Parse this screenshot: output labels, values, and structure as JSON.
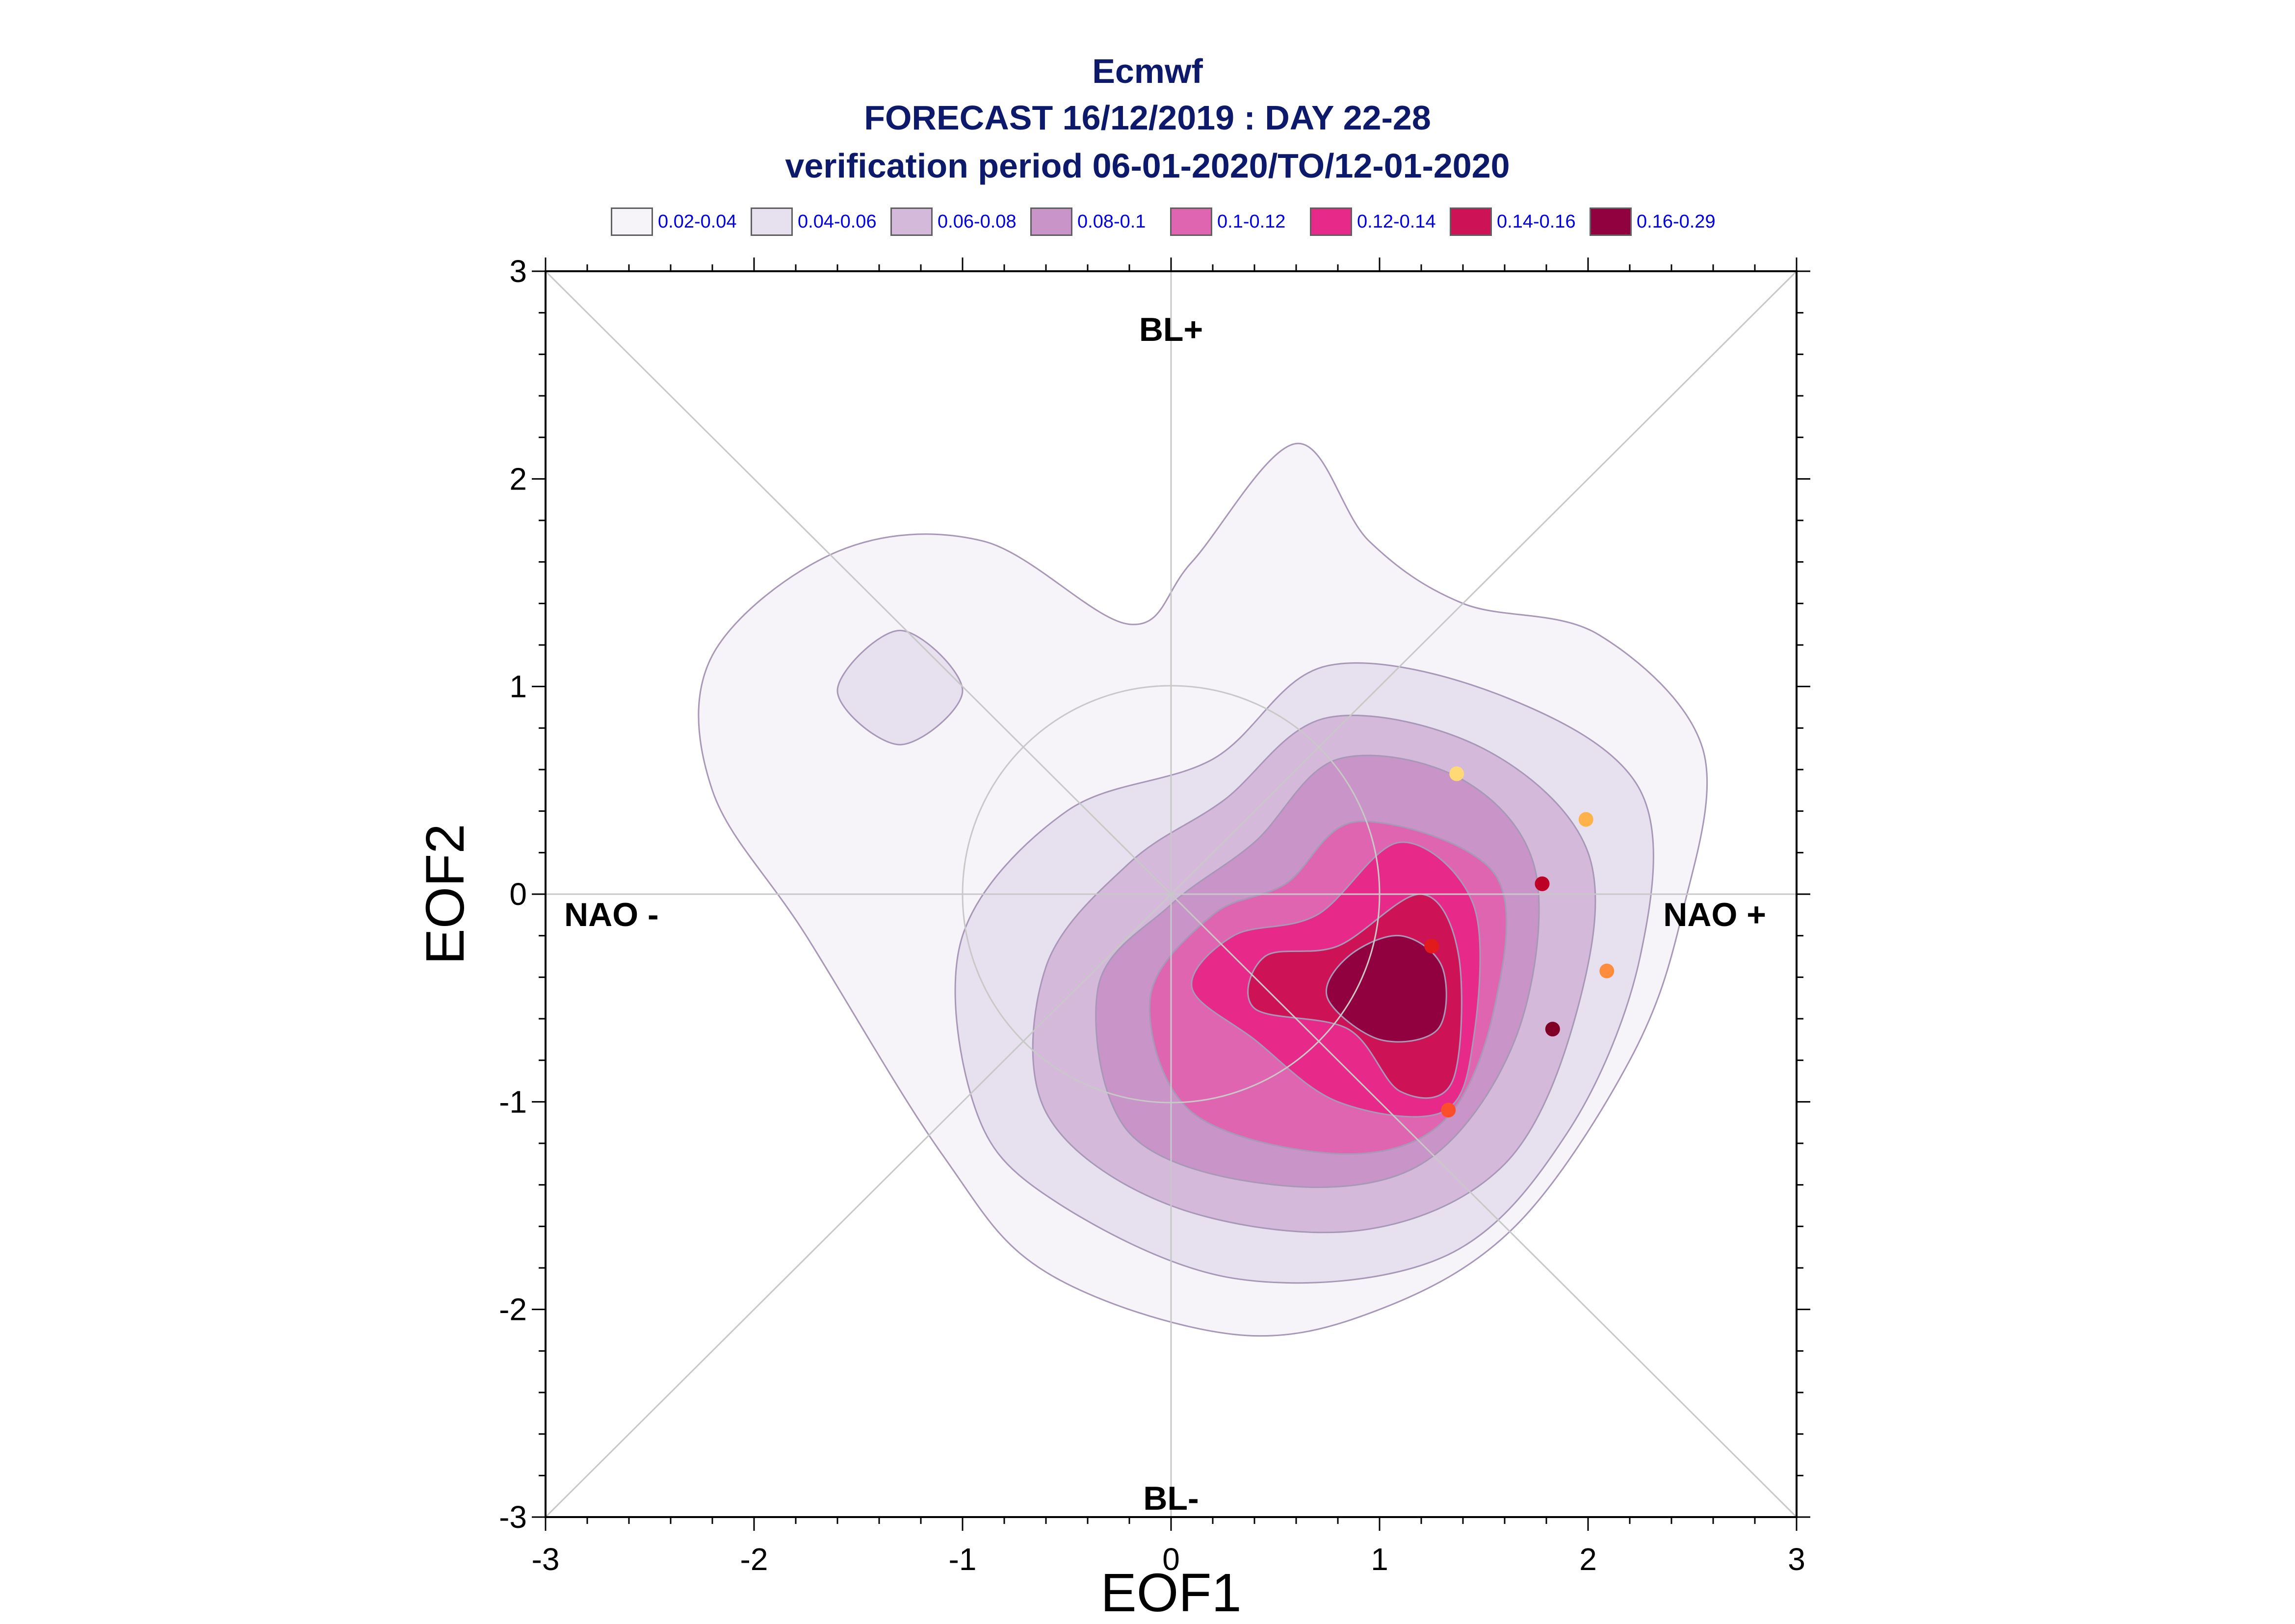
{
  "title": {
    "line1": "Ecmwf",
    "line2": "FORECAST 16/12/2019 : DAY 22-28",
    "line3": "verification period 06-01-2020/TO/12-01-2020"
  },
  "legend": [
    {
      "label": "0.02-0.04",
      "color": "#f7f4f9"
    },
    {
      "label": "0.04-0.06",
      "color": "#e7e1ef"
    },
    {
      "label": "0.06-0.08",
      "color": "#d4b9da"
    },
    {
      "label": "0.08-0.1",
      "color": "#c994c7"
    },
    {
      "label": "0.1-0.12",
      "color": "#df65b0"
    },
    {
      "label": "0.12-0.14",
      "color": "#e7298a"
    },
    {
      "label": "0.14-0.16",
      "color": "#ce1256"
    },
    {
      "label": "0.16-0.29",
      "color": "#91003f"
    }
  ],
  "chart_data": {
    "type": "scatter",
    "title": "Ecmwf FORECAST 16/12/2019 : DAY 22-28 verification period 06-01-2020/TO/12-01-2020",
    "xlabel": "EOF1",
    "ylabel": "EOF2",
    "xlim": [
      -3,
      3
    ],
    "ylim": [
      -3,
      3
    ],
    "xticks": [
      "-3",
      "-2",
      "-1",
      "0",
      "1",
      "2",
      "3"
    ],
    "yticks": [
      "-3",
      "-2",
      "-1",
      "0",
      "1",
      "2",
      "3"
    ],
    "regime_labels": {
      "top": "BL+",
      "bottom": "BL-",
      "left": "NAO -",
      "right": "NAO +"
    },
    "unit_circle_radius": 1,
    "diagonals": true,
    "density_levels": [
      0.02,
      0.04,
      0.06,
      0.08,
      0.1,
      0.12,
      0.14,
      0.16,
      0.29
    ],
    "contours": [
      {
        "level": "0.02-0.04",
        "points": [
          [
            0.6,
            2.17
          ],
          [
            0.95,
            1.7
          ],
          [
            1.4,
            1.4
          ],
          [
            2.05,
            1.25
          ],
          [
            2.55,
            0.7
          ],
          [
            2.45,
            -0.1
          ],
          [
            2.2,
            -0.8
          ],
          [
            1.65,
            -1.6
          ],
          [
            1.0,
            -2.0
          ],
          [
            0.3,
            -2.12
          ],
          [
            -0.6,
            -1.82
          ],
          [
            -1.1,
            -1.25
          ],
          [
            -1.75,
            -0.2
          ],
          [
            -2.2,
            0.5
          ],
          [
            -2.2,
            1.15
          ],
          [
            -1.6,
            1.65
          ],
          [
            -0.9,
            1.7
          ],
          [
            -0.2,
            1.3
          ],
          [
            0.1,
            1.6
          ]
        ]
      },
      {
        "level": "0.04-0.06",
        "points": [
          [
            0.75,
            1.1
          ],
          [
            1.6,
            0.95
          ],
          [
            2.25,
            0.5
          ],
          [
            2.25,
            -0.3
          ],
          [
            1.9,
            -1.15
          ],
          [
            1.3,
            -1.75
          ],
          [
            0.3,
            -1.85
          ],
          [
            -0.6,
            -1.45
          ],
          [
            -0.95,
            -1.0
          ],
          [
            -1.0,
            -0.2
          ],
          [
            -0.5,
            0.4
          ],
          [
            0.2,
            0.65
          ]
        ]
      },
      {
        "level": "0.06-0.08",
        "points": [
          [
            0.75,
            0.85
          ],
          [
            1.5,
            0.7
          ],
          [
            2.0,
            0.2
          ],
          [
            1.95,
            -0.55
          ],
          [
            1.6,
            -1.3
          ],
          [
            0.9,
            -1.62
          ],
          [
            0.0,
            -1.5
          ],
          [
            -0.6,
            -1.05
          ],
          [
            -0.6,
            -0.35
          ],
          [
            -0.2,
            0.15
          ],
          [
            0.25,
            0.45
          ]
        ]
      },
      {
        "level": "0.08-0.1",
        "points": [
          [
            0.8,
            0.65
          ],
          [
            1.4,
            0.55
          ],
          [
            1.75,
            0.1
          ],
          [
            1.65,
            -0.7
          ],
          [
            1.2,
            -1.3
          ],
          [
            0.5,
            -1.4
          ],
          [
            -0.2,
            -1.15
          ],
          [
            -0.35,
            -0.45
          ],
          [
            0.0,
            -0.05
          ],
          [
            0.4,
            0.25
          ]
        ]
      },
      {
        "level": "0.1-0.12",
        "points": [
          [
            0.9,
            0.35
          ],
          [
            1.55,
            0.1
          ],
          [
            1.55,
            -0.55
          ],
          [
            1.3,
            -1.1
          ],
          [
            0.8,
            -1.25
          ],
          [
            0.1,
            -1.05
          ],
          [
            -0.1,
            -0.5
          ],
          [
            0.2,
            -0.1
          ],
          [
            0.55,
            0.05
          ]
        ]
      },
      {
        "level": "0.12-0.14",
        "points": [
          [
            1.1,
            0.25
          ],
          [
            1.45,
            -0.05
          ],
          [
            1.45,
            -0.7
          ],
          [
            1.3,
            -1.05
          ],
          [
            0.8,
            -1.0
          ],
          [
            0.4,
            -0.7
          ],
          [
            0.1,
            -0.45
          ],
          [
            0.3,
            -0.2
          ],
          [
            0.7,
            -0.1
          ]
        ]
      },
      {
        "level": "0.14-0.16",
        "points": [
          [
            1.2,
            0.0
          ],
          [
            1.38,
            -0.3
          ],
          [
            1.35,
            -0.9
          ],
          [
            1.1,
            -0.95
          ],
          [
            0.85,
            -0.65
          ],
          [
            0.4,
            -0.55
          ],
          [
            0.45,
            -0.3
          ],
          [
            0.8,
            -0.25
          ]
        ]
      },
      {
        "level": "0.16-0.29",
        "points": [
          [
            1.1,
            -0.2
          ],
          [
            1.3,
            -0.35
          ],
          [
            1.28,
            -0.65
          ],
          [
            1.0,
            -0.7
          ],
          [
            0.75,
            -0.5
          ],
          [
            0.85,
            -0.3
          ]
        ]
      },
      {
        "level": "0.04-0.06",
        "points": [
          [
            -1.3,
            1.27
          ],
          [
            -1.0,
            0.98
          ],
          [
            -1.3,
            0.72
          ],
          [
            -1.6,
            0.98
          ]
        ]
      }
    ],
    "points": [
      {
        "x": 1.37,
        "y": 0.58,
        "color": "#fed976"
      },
      {
        "x": 1.99,
        "y": 0.36,
        "color": "#feb24c"
      },
      {
        "x": 1.78,
        "y": 0.05,
        "color": "#bd0026"
      },
      {
        "x": 1.25,
        "y": -0.25,
        "color": "#e31a1c"
      },
      {
        "x": 2.09,
        "y": -0.37,
        "color": "#fd8d3c"
      },
      {
        "x": 1.83,
        "y": -0.65,
        "color": "#800026"
      },
      {
        "x": 1.33,
        "y": -1.04,
        "color": "#fc4e2a"
      }
    ]
  }
}
